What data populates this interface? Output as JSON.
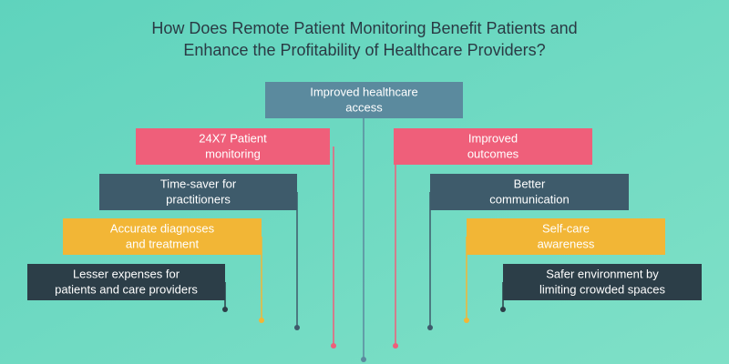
{
  "header": {
    "title": [
      "How Does Remote Patient Monitoring Benefit Patients and",
      "Enhance the Profitability of Healthcare Providers?"
    ]
  },
  "nodes": [
    {
      "lines": [
        "Improved healthcare",
        "access"
      ]
    },
    {
      "lines": [
        "24X7 Patient",
        "monitoring"
      ]
    },
    {
      "lines": [
        "Improved",
        "outcomes"
      ]
    },
    {
      "lines": [
        "Time-saver for",
        "practitioners"
      ]
    },
    {
      "lines": [
        "Better",
        "communication"
      ]
    },
    {
      "lines": [
        "Accurate diagnoses",
        "and treatment"
      ]
    },
    {
      "lines": [
        "Self-care",
        "awareness"
      ]
    },
    {
      "lines": [
        "Lesser expenses for",
        "patients and care providers"
      ]
    },
    {
      "lines": [
        "Safer environment by",
        "limiting crowded spaces"
      ]
    }
  ]
}
